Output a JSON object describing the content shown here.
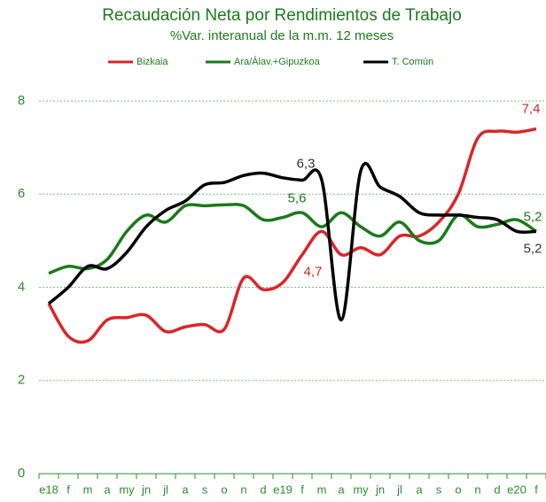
{
  "chart_data": {
    "type": "line",
    "title": "Recaudación Neta por Rendimientos de Trabajo",
    "subtitle": "%Var. interanual de la m.m. 12 meses",
    "categories": [
      "e18",
      "f",
      "m",
      "a",
      "my",
      "jn",
      "jl",
      "a",
      "s",
      "o",
      "n",
      "d",
      "e19",
      "f",
      "m",
      "a",
      "my",
      "jn",
      "jl",
      "a",
      "s",
      "o",
      "n",
      "d",
      "e20",
      "f"
    ],
    "series": [
      {
        "name": "Bizkaia",
        "color": "#d9262a",
        "values": [
          3.65,
          2.95,
          2.85,
          3.3,
          3.35,
          3.4,
          3.05,
          3.15,
          3.2,
          3.1,
          4.2,
          3.95,
          4.1,
          4.7,
          5.2,
          4.7,
          4.85,
          4.7,
          5.1,
          5.1,
          5.4,
          6.0,
          7.2,
          7.35,
          7.33,
          7.4
        ],
        "value_labels": [
          null,
          null,
          null,
          null,
          null,
          null,
          null,
          null,
          null,
          null,
          null,
          null,
          null,
          "4,7",
          null,
          null,
          null,
          null,
          null,
          null,
          null,
          null,
          null,
          null,
          null,
          "7,4"
        ]
      },
      {
        "name": "Ara/Álav.+Gipuzkoa",
        "color": "#1a7a1a",
        "values": [
          4.3,
          4.45,
          4.4,
          4.6,
          5.2,
          5.55,
          5.4,
          5.75,
          5.75,
          5.77,
          5.75,
          5.45,
          5.5,
          5.6,
          5.3,
          5.6,
          5.3,
          5.1,
          5.4,
          5.0,
          5.0,
          5.55,
          5.3,
          5.35,
          5.45,
          5.2
        ],
        "value_labels": [
          null,
          null,
          null,
          null,
          null,
          null,
          null,
          null,
          null,
          null,
          null,
          null,
          null,
          "5,6",
          null,
          null,
          null,
          null,
          null,
          null,
          null,
          null,
          null,
          null,
          null,
          "5,2"
        ]
      },
      {
        "name": "T. Común",
        "color": "#000000",
        "values": [
          3.65,
          4.0,
          4.45,
          4.4,
          4.75,
          5.3,
          5.65,
          5.85,
          6.2,
          6.25,
          6.4,
          6.45,
          6.35,
          6.3,
          6.3,
          3.3,
          6.5,
          6.15,
          5.95,
          5.6,
          5.55,
          5.55,
          5.5,
          5.45,
          5.2,
          5.2
        ],
        "value_labels": [
          null,
          null,
          null,
          null,
          null,
          null,
          null,
          null,
          null,
          null,
          null,
          null,
          null,
          null,
          "6,3",
          null,
          null,
          null,
          null,
          null,
          null,
          null,
          null,
          null,
          null,
          "5,2"
        ]
      }
    ],
    "ylim": [
      0,
      8
    ],
    "yticks": [
      0,
      2,
      4,
      6,
      8
    ],
    "grid": true
  }
}
